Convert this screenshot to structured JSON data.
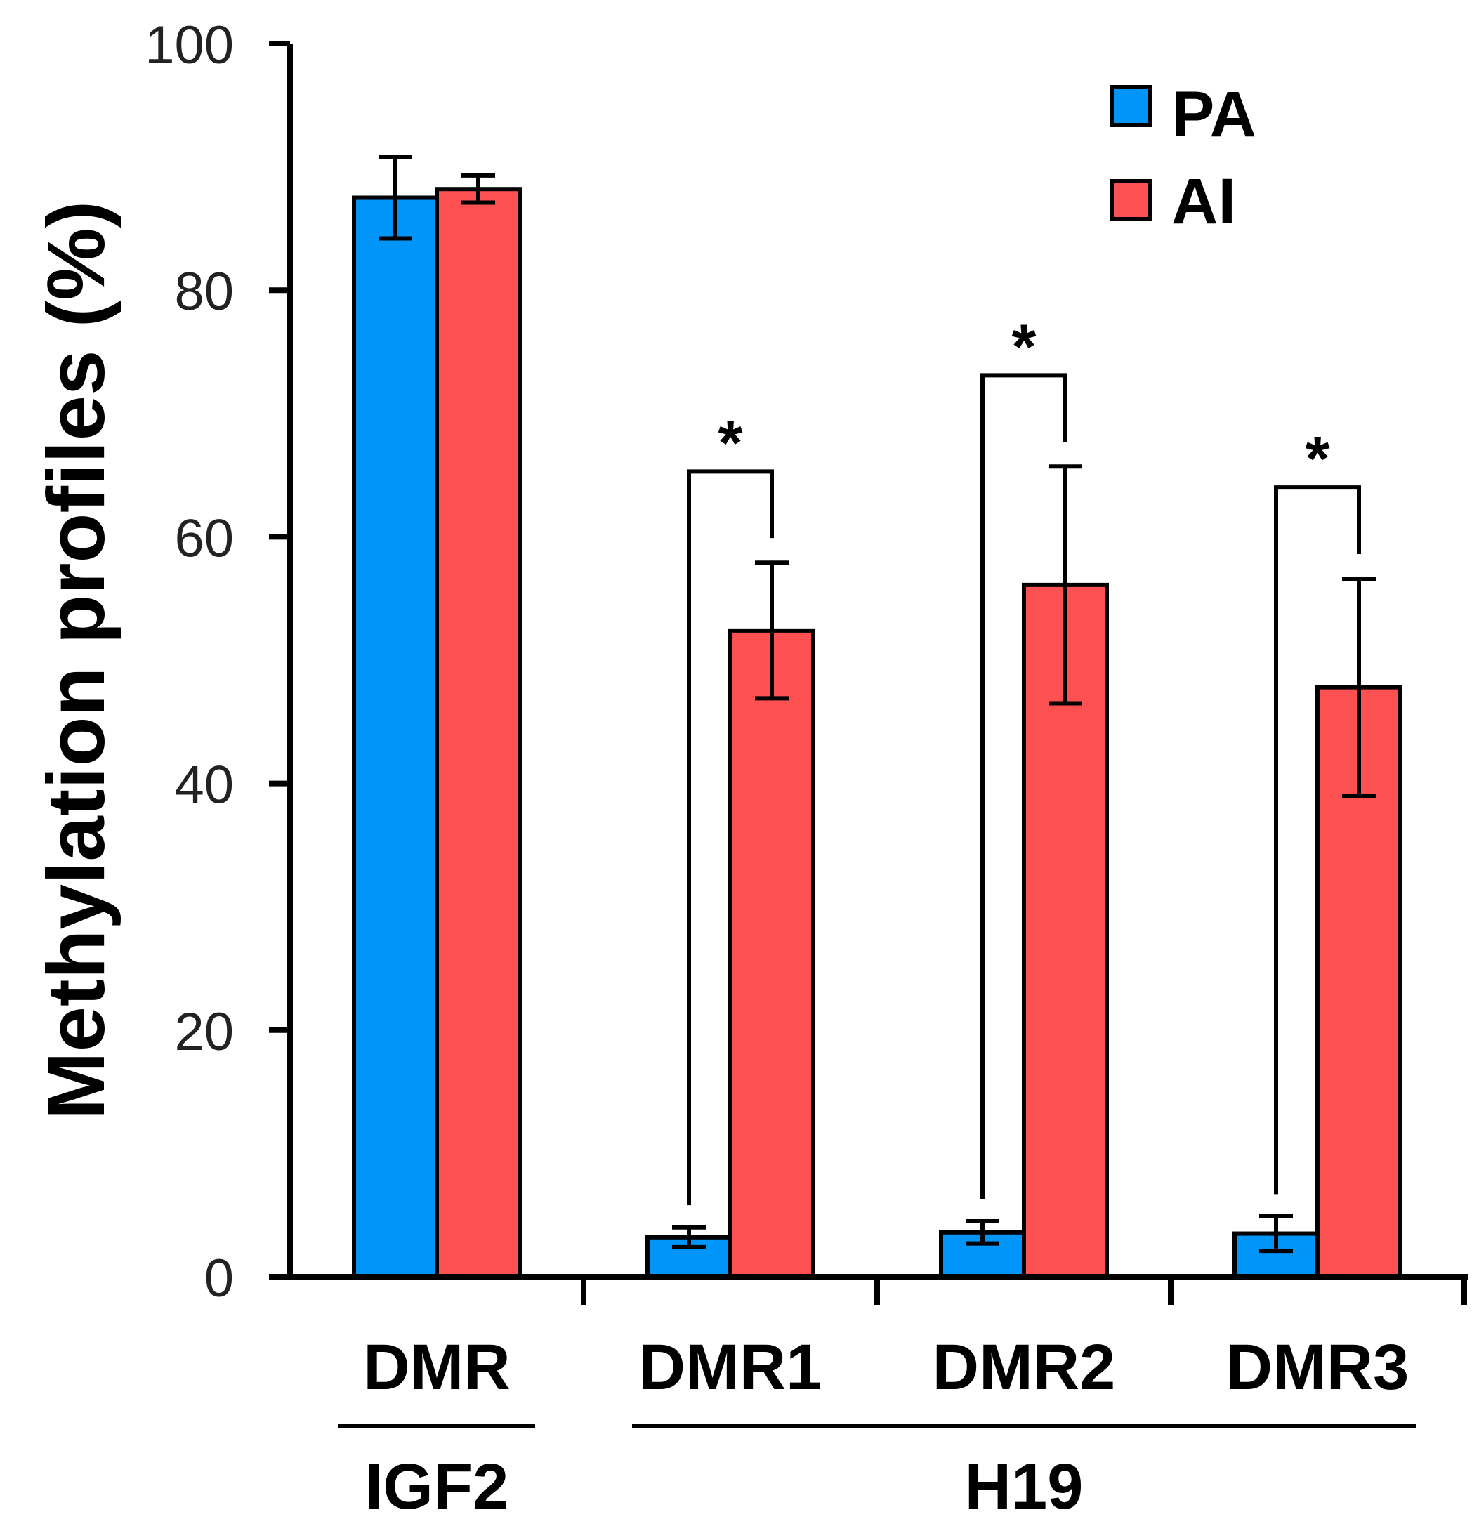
{
  "chart_data": {
    "type": "bar",
    "title": "",
    "xlabel": "",
    "ylabel": "Methylation profiles (%)",
    "ylim": [
      0,
      100
    ],
    "yticks": [
      "0",
      "20",
      "40",
      "60",
      "80",
      "100"
    ],
    "categories": [
      "DMR",
      "DMR1",
      "DMR2",
      "DMR3"
    ],
    "groups": [
      {
        "label": "IGF2",
        "categories": [
          "DMR"
        ]
      },
      {
        "label": "H19",
        "categories": [
          "DMR1",
          "DMR2",
          "DMR3"
        ]
      }
    ],
    "series": [
      {
        "name": "PA",
        "color": "#0095f8",
        "values": [
          87.5,
          3.2,
          3.6,
          3.5
        ],
        "errors": [
          3.3,
          0.8,
          0.9,
          1.4
        ]
      },
      {
        "name": "AI",
        "color": "#fd5050",
        "values": [
          88.2,
          52.4,
          56.1,
          47.8
        ],
        "errors": [
          1.1,
          5.5,
          9.6,
          8.8
        ]
      }
    ],
    "significance": [
      {
        "category": "DMR1",
        "label": "*"
      },
      {
        "category": "DMR2",
        "label": "*"
      },
      {
        "category": "DMR3",
        "label": "*"
      }
    ],
    "legend": {
      "position": "top-right",
      "entries": [
        "PA",
        "AI"
      ]
    },
    "grid": false
  }
}
